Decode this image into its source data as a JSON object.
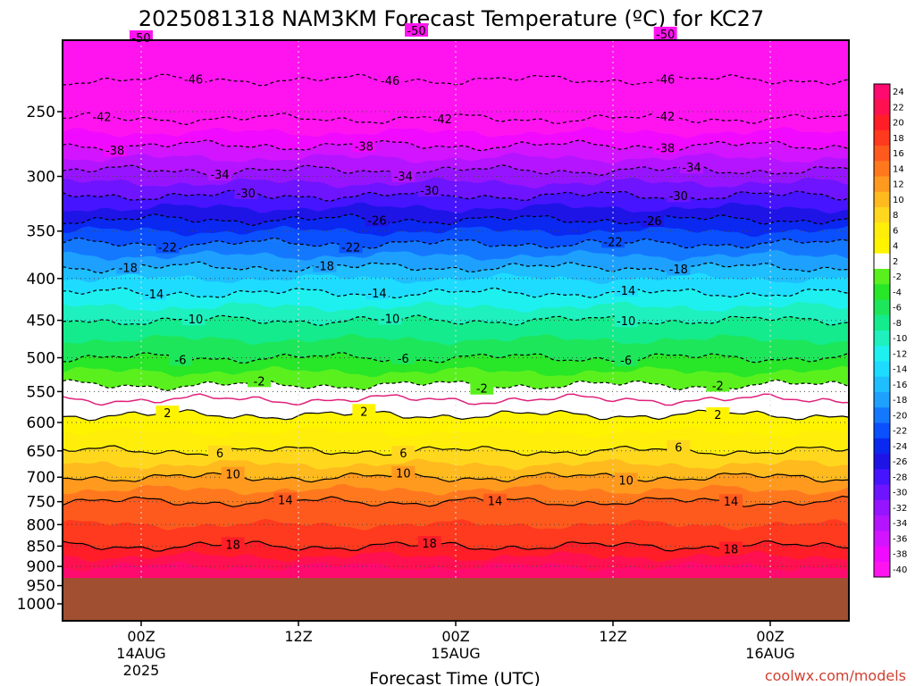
{
  "title": "2025081318 NAM3KM Forecast Temperature (ºC) for KC27",
  "credit": "coolwx.com/models",
  "chart_data": {
    "type": "heatmap",
    "title": "2025081318 NAM3KM Forecast Temperature (ºC) for KC27",
    "xlabel": "Forecast Time (UTC)",
    "ylabel": "",
    "y_scale": "log-pressure (hPa)",
    "y_ticks": [
      250,
      300,
      350,
      400,
      450,
      500,
      550,
      600,
      650,
      700,
      750,
      800,
      850,
      900,
      950,
      1000
    ],
    "x_ticks": [
      {
        "label": "00Z",
        "sub1": "14AUG",
        "sub2": "2025"
      },
      {
        "label": "12Z",
        "sub1": "",
        "sub2": ""
      },
      {
        "label": "00Z",
        "sub1": "15AUG",
        "sub2": ""
      },
      {
        "label": "12Z",
        "sub1": "",
        "sub2": ""
      },
      {
        "label": "00Z",
        "sub1": "16AUG",
        "sub2": ""
      }
    ],
    "x_range_hours": [
      -6,
      54
    ],
    "surface_pressure_hPa": 930,
    "colorbar": {
      "labels": [
        "24",
        "22",
        "20",
        "18",
        "16",
        "14",
        "12",
        "10",
        "8",
        "6",
        "4",
        "2",
        "-2",
        "-4",
        "-6",
        "-8",
        "-10",
        "-12",
        "-14",
        "-16",
        "-18",
        "-20",
        "-22",
        "-24",
        "-26",
        "-28",
        "-30",
        "-32",
        "-34",
        "-36",
        "-38",
        "-40"
      ],
      "colors": [
        "#ff0a6e",
        "#ff1050",
        "#ff1e28",
        "#ff3a1e",
        "#ff5a1e",
        "#ff781e",
        "#ff9a1e",
        "#ffba1e",
        "#ffd81e",
        "#ffee0a",
        "#fff400",
        "#ffffff",
        "#5af01e",
        "#28e628",
        "#1ee65a",
        "#14eb8c",
        "#1ef0be",
        "#1ef0f0",
        "#1edcff",
        "#1ebeff",
        "#1ea0ff",
        "#1478ff",
        "#0a50ff",
        "#0a28f0",
        "#1e14e6",
        "#4614ff",
        "#6e14ff",
        "#9614ff",
        "#b414ff",
        "#d214ff",
        "#f00aff",
        "#ff14f0"
      ]
    },
    "contours": [
      {
        "value": -50,
        "labels_at": [
          0,
          21,
          40
        ]
      },
      {
        "value": -46,
        "labels_at": [
          4,
          19,
          40
        ]
      },
      {
        "value": -42,
        "labels_at": [
          -3,
          23,
          40
        ]
      },
      {
        "value": -38,
        "labels_at": [
          -2,
          17,
          40
        ]
      },
      {
        "value": -34,
        "labels_at": [
          6,
          20,
          42
        ]
      },
      {
        "value": -30,
        "labels_at": [
          8,
          22,
          41
        ]
      },
      {
        "value": -26,
        "labels_at": [
          18,
          39
        ]
      },
      {
        "value": -22,
        "labels_at": [
          2,
          16,
          36
        ]
      },
      {
        "value": -18,
        "labels_at": [
          -1,
          14,
          41
        ]
      },
      {
        "value": -14,
        "labels_at": [
          1,
          18,
          37
        ]
      },
      {
        "value": -10,
        "labels_at": [
          4,
          19,
          37
        ]
      },
      {
        "value": -6,
        "labels_at": [
          3,
          20,
          37
        ]
      },
      {
        "value": -2,
        "labels_at": [
          9,
          26,
          44
        ]
      },
      {
        "value": 2,
        "labels_at": [
          2,
          17,
          44
        ]
      },
      {
        "value": 6,
        "labels_at": [
          6,
          20,
          41
        ]
      },
      {
        "value": 10,
        "labels_at": [
          7,
          20,
          37
        ]
      },
      {
        "value": 14,
        "labels_at": [
          11,
          27,
          45
        ]
      },
      {
        "value": 18,
        "labels_at": [
          7,
          22,
          45
        ]
      }
    ]
  }
}
